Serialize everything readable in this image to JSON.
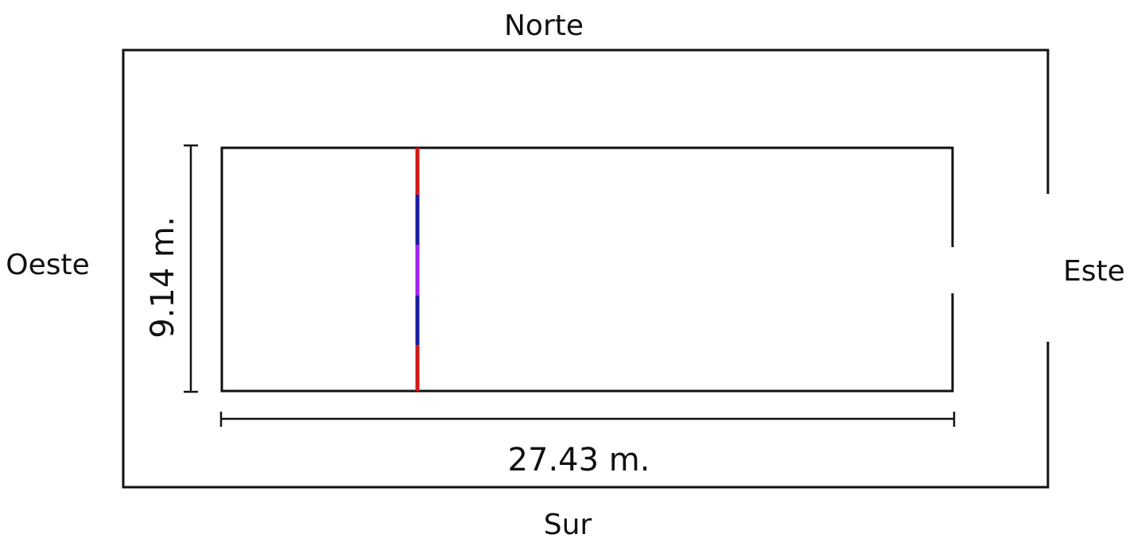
{
  "labels": {
    "north": "Norte",
    "south": "Sur",
    "west": "Oeste",
    "east": "Este"
  },
  "dimensions": {
    "length": "27.43 m.",
    "width": "9.14 m."
  },
  "colors": {
    "outline": "#111111",
    "line_red": "#d01818",
    "line_blue": "#1a1aa0",
    "line_violet": "#a020f0"
  }
}
